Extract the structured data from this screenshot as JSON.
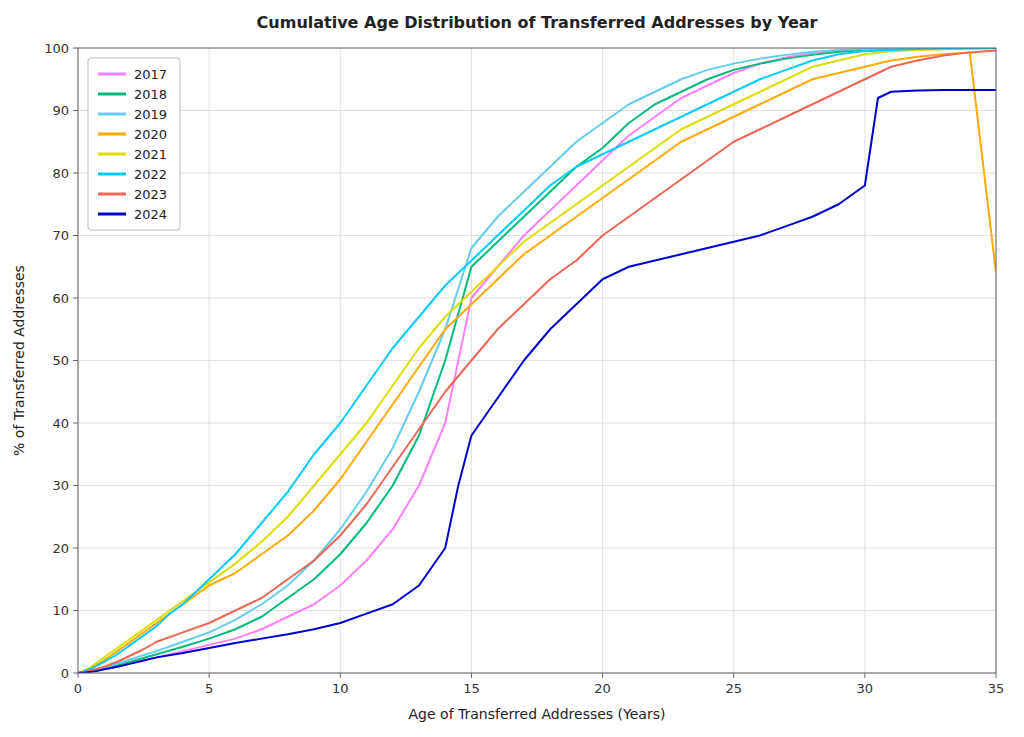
{
  "chart_data": {
    "type": "line",
    "title": "Cumulative Age Distribution of Transferred Addresses by Year",
    "x_label": "Age of Transferred Addresses (Years)",
    "y_label": "% of Transferred Addresses",
    "xlim": [
      0,
      35
    ],
    "ylim": [
      0,
      100
    ],
    "xticks": [
      0,
      5,
      10,
      15,
      20,
      25,
      30,
      35
    ],
    "yticks": [
      0,
      10,
      20,
      30,
      40,
      50,
      60,
      70,
      80,
      90,
      100
    ],
    "grid": true,
    "legend": "upper-left",
    "series": [
      {
        "name": "2017",
        "color": "#FF80FF",
        "x": [
          0,
          0.2,
          0.5,
          1,
          1.5,
          2,
          3,
          4,
          5,
          6,
          7,
          8,
          9,
          10,
          11,
          12,
          13,
          14,
          15,
          16,
          17,
          18,
          19,
          20,
          21,
          22,
          23,
          24,
          25,
          26,
          27,
          28,
          29,
          30,
          31,
          32,
          33,
          34,
          35
        ],
        "values": [
          0,
          0.1,
          0.3,
          0.6,
          1.0,
          1.5,
          2.5,
          3.5,
          4.5,
          5.5,
          7,
          9,
          11,
          14,
          18,
          23,
          30,
          40,
          60,
          65,
          70,
          74,
          78,
          82,
          86,
          89,
          92,
          94,
          96,
          97.5,
          98.5,
          99.2,
          99.6,
          99.8,
          99.9,
          99.95,
          99.97,
          99.98,
          99.99
        ]
      },
      {
        "name": "2018",
        "color": "#00BB77",
        "x": [
          0,
          0.2,
          0.5,
          1,
          1.5,
          2,
          3,
          4,
          5,
          6,
          7,
          8,
          9,
          10,
          11,
          12,
          13,
          14,
          15,
          16,
          17,
          18,
          19,
          20,
          21,
          22,
          23,
          24,
          25,
          26,
          27,
          28,
          29,
          30,
          31,
          32,
          33,
          34,
          35
        ],
        "values": [
          0,
          0.1,
          0.3,
          0.7,
          1.2,
          1.8,
          3.0,
          4.2,
          5.5,
          7,
          9,
          12,
          15,
          19,
          24,
          30,
          38,
          50,
          65,
          69,
          73,
          77,
          81,
          84,
          88,
          91,
          93,
          95,
          96.5,
          97.5,
          98.3,
          98.9,
          99.4,
          99.7,
          99.85,
          99.92,
          99.96,
          99.98,
          99.99
        ]
      },
      {
        "name": "2019",
        "color": "#66CCEE",
        "x": [
          0,
          0.2,
          0.5,
          1,
          1.5,
          2,
          3,
          4,
          5,
          6,
          7,
          8,
          9,
          10,
          11,
          12,
          13,
          14,
          15,
          16,
          17,
          18,
          19,
          20,
          21,
          22,
          23,
          24,
          25,
          26,
          27,
          28,
          29,
          30,
          31,
          32,
          33,
          34,
          35
        ],
        "values": [
          0,
          0.1,
          0.4,
          0.9,
          1.5,
          2.2,
          3.5,
          5.0,
          6.5,
          8.5,
          11,
          14,
          18,
          23,
          29,
          36,
          45,
          55,
          68,
          73,
          77,
          81,
          85,
          88,
          91,
          93,
          95,
          96.5,
          97.5,
          98.3,
          98.9,
          99.4,
          99.7,
          99.85,
          99.92,
          99.96,
          99.98,
          99.99,
          99.99
        ]
      },
      {
        "name": "2020",
        "color": "#FFAA00",
        "x": [
          0,
          0.2,
          0.5,
          1,
          1.5,
          2,
          2.5,
          3,
          3.5,
          4,
          5,
          6,
          7,
          8,
          9,
          10,
          11,
          12,
          13,
          14,
          15,
          16,
          17,
          18,
          19,
          20,
          21,
          22,
          23,
          24,
          25,
          26,
          27,
          28,
          29,
          30,
          31,
          32,
          33,
          34,
          35
        ],
        "values": [
          0,
          0.2,
          0.8,
          2.0,
          3.5,
          5.0,
          6.5,
          8.0,
          9.5,
          11,
          14,
          16,
          19,
          22,
          26,
          31,
          37,
          43,
          49,
          55,
          59,
          63,
          67,
          70,
          73,
          76,
          79,
          82,
          85,
          87,
          89,
          91,
          93,
          95,
          96,
          97,
          98,
          98.6,
          99.0,
          99.3,
          64
        ]
      },
      {
        "name": "2021",
        "color": "#DDDD00",
        "x": [
          0,
          0.2,
          0.5,
          1,
          1.5,
          2,
          2.5,
          3,
          3.5,
          4,
          5,
          6,
          7,
          8,
          9,
          10,
          11,
          12,
          13,
          14,
          15,
          16,
          17,
          18,
          19,
          20,
          21,
          22,
          23,
          24,
          25,
          26,
          27,
          28,
          29,
          30,
          31,
          32,
          33,
          34,
          35
        ],
        "values": [
          0,
          0.3,
          1.0,
          2.5,
          4.0,
          5.5,
          7.0,
          8.5,
          10,
          11.5,
          14.5,
          17.5,
          21,
          25,
          30,
          35,
          40,
          46,
          52,
          57,
          61,
          65,
          69,
          72,
          75,
          78,
          81,
          84,
          87,
          89,
          91,
          93,
          95,
          97,
          98,
          99,
          99.5,
          99.7,
          99.8,
          99.9,
          99.95
        ]
      },
      {
        "name": "2022",
        "color": "#00CCFF",
        "x": [
          0,
          0.2,
          0.5,
          1,
          1.5,
          2,
          2.5,
          3,
          3.5,
          4,
          5,
          6,
          7,
          8,
          9,
          10,
          11,
          12,
          13,
          14,
          15,
          16,
          17,
          18,
          19,
          20,
          21,
          22,
          23,
          24,
          25,
          26,
          27,
          28,
          29,
          30,
          31,
          32,
          33,
          34,
          35
        ],
        "values": [
          0,
          0.2,
          0.7,
          1.8,
          3.0,
          4.5,
          6.0,
          7.5,
          9.5,
          11,
          15,
          19,
          24,
          29,
          35,
          40,
          46,
          52,
          57,
          62,
          66,
          70,
          74,
          78,
          81,
          83,
          85,
          87,
          89,
          91,
          93,
          95,
          96.5,
          98,
          99,
          99.5,
          99.7,
          99.85,
          99.92,
          99.96,
          99.99
        ]
      },
      {
        "name": "2023",
        "color": "#EE6655",
        "x": [
          0,
          0.2,
          0.5,
          1,
          1.5,
          2,
          2.5,
          3,
          4,
          5,
          6,
          7,
          8,
          9,
          10,
          11,
          12,
          13,
          14,
          15,
          16,
          17,
          18,
          19,
          20,
          21,
          22,
          23,
          24,
          25,
          26,
          27,
          28,
          29,
          30,
          31,
          32,
          33,
          34,
          35
        ],
        "values": [
          0,
          0.1,
          0.4,
          1.0,
          1.8,
          2.8,
          3.8,
          5.0,
          6.5,
          8.0,
          10,
          12,
          15,
          18,
          22,
          27,
          33,
          39,
          45,
          50,
          55,
          59,
          63,
          66,
          70,
          73,
          76,
          79,
          82,
          85,
          87,
          89,
          91,
          93,
          95,
          97,
          98,
          98.8,
          99.3,
          99.6
        ]
      },
      {
        "name": "2024",
        "color": "#0000CC",
        "x": [
          0,
          0.3,
          0.7,
          1,
          1.5,
          2,
          2.5,
          3,
          4,
          5,
          6,
          7,
          8,
          9,
          10,
          11,
          12,
          13,
          14,
          14.5,
          15,
          16,
          17,
          18,
          19,
          19.5,
          20,
          21,
          22,
          23,
          24,
          25,
          26,
          27,
          28,
          29,
          30,
          30.5,
          31,
          32,
          33,
          34,
          35
        ],
        "values": [
          0,
          0.1,
          0.3,
          0.6,
          1.0,
          1.5,
          2.0,
          2.5,
          3.2,
          4.0,
          4.8,
          5.5,
          6.2,
          7.0,
          8.0,
          9.5,
          11,
          14,
          20,
          30,
          38,
          44,
          50,
          55,
          59,
          61,
          63,
          65,
          66,
          67,
          68,
          69,
          70,
          71.5,
          73,
          75,
          78,
          92,
          93,
          93.2,
          93.3,
          93.3,
          93.3
        ]
      }
    ]
  }
}
